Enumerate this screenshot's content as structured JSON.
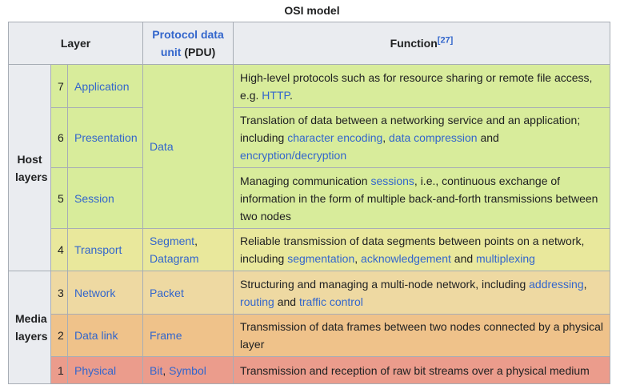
{
  "title": "OSI model",
  "colors": {
    "header_bg": "#eaecf0",
    "host_rows_bg": "#d8ec9b",
    "transport_row_bg": "#e9e89c",
    "network_row_bg": "#eed9a2",
    "datalink_row_bg": "#efc28a",
    "physical_row_bg": "#eb9c8c",
    "link": "#3366cc",
    "border": "#a2a9b1",
    "text": "#202122"
  },
  "header": {
    "layer": "Layer",
    "pdu_link": "Protocol data unit",
    "pdu_suffix": " (PDU)",
    "function_label": "Function",
    "function_ref": "[27]"
  },
  "groups": {
    "host": "Host layers",
    "media": "Media layers"
  },
  "pdu_data_cell": [
    {
      "text": "Data",
      "link": true
    }
  ],
  "rows": [
    {
      "number": "7",
      "name": "Application",
      "function": [
        {
          "text": "High-level protocols such as for resource sharing or remote file access, e.g. "
        },
        {
          "text": "HTTP",
          "link": true
        },
        {
          "text": "."
        }
      ]
    },
    {
      "number": "6",
      "name": "Presentation",
      "function": [
        {
          "text": "Translation of data between a networking service and an application; including "
        },
        {
          "text": "character encoding",
          "link": true
        },
        {
          "text": ", "
        },
        {
          "text": "data compression",
          "link": true
        },
        {
          "text": " and "
        },
        {
          "text": "encryption/decryption",
          "link": true
        }
      ]
    },
    {
      "number": "5",
      "name": "Session",
      "function": [
        {
          "text": "Managing communication "
        },
        {
          "text": "sessions",
          "link": true
        },
        {
          "text": ", i.e., continuous exchange of information in the form of multiple back-and-forth transmissions between two nodes"
        }
      ]
    },
    {
      "number": "4",
      "name": "Transport",
      "pdu": [
        {
          "text": "Segment",
          "link": true
        },
        {
          "text": ", "
        },
        {
          "text": "Datagram",
          "link": true
        }
      ],
      "function": [
        {
          "text": "Reliable transmission of data segments between points on a network, including "
        },
        {
          "text": "segmentation",
          "link": true
        },
        {
          "text": ", "
        },
        {
          "text": "acknowledgement",
          "link": true
        },
        {
          "text": " and "
        },
        {
          "text": "multiplexing",
          "link": true
        }
      ]
    },
    {
      "number": "3",
      "name": "Network",
      "pdu": [
        {
          "text": "Packet",
          "link": true
        }
      ],
      "function": [
        {
          "text": "Structuring and managing a multi-node network, including "
        },
        {
          "text": "addressing",
          "link": true
        },
        {
          "text": ", "
        },
        {
          "text": "routing",
          "link": true
        },
        {
          "text": " and "
        },
        {
          "text": "traffic control",
          "link": true
        }
      ]
    },
    {
      "number": "2",
      "name": "Data link",
      "pdu": [
        {
          "text": "Frame",
          "link": true
        }
      ],
      "function": [
        {
          "text": "Transmission of data frames between two nodes connected by a physical layer"
        }
      ]
    },
    {
      "number": "1",
      "name": "Physical",
      "pdu": [
        {
          "text": "Bit",
          "link": true
        },
        {
          "text": ", "
        },
        {
          "text": "Symbol",
          "link": true
        }
      ],
      "function": [
        {
          "text": "Transmission and reception of raw bit streams over a physical medium"
        }
      ]
    }
  ]
}
